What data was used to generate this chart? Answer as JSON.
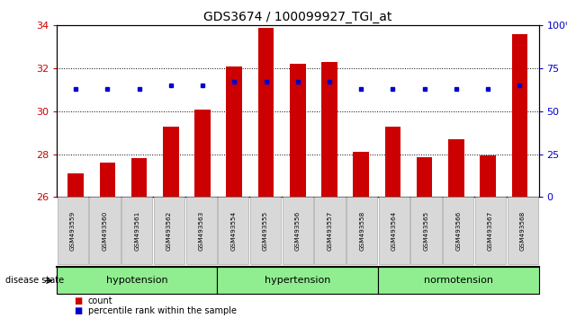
{
  "title": "GDS3674 / 100099927_TGI_at",
  "samples": [
    "GSM493559",
    "GSM493560",
    "GSM493561",
    "GSM493562",
    "GSM493563",
    "GSM493554",
    "GSM493555",
    "GSM493556",
    "GSM493557",
    "GSM493558",
    "GSM493564",
    "GSM493565",
    "GSM493566",
    "GSM493567",
    "GSM493568"
  ],
  "counts": [
    27.1,
    27.6,
    27.8,
    29.3,
    30.1,
    32.1,
    33.9,
    32.2,
    32.3,
    28.1,
    29.3,
    27.85,
    28.7,
    27.95,
    33.6
  ],
  "percentiles": [
    63,
    63,
    63,
    65,
    65,
    67,
    67,
    67,
    67,
    63,
    63,
    63,
    63,
    63,
    65
  ],
  "ylim_left": [
    26,
    34
  ],
  "ylim_right": [
    0,
    100
  ],
  "yticks_left": [
    26,
    28,
    30,
    32,
    34
  ],
  "yticks_right": [
    0,
    25,
    50,
    75,
    100
  ],
  "bar_color": "#cc0000",
  "dot_color": "#0000cc",
  "groups": [
    {
      "label": "hypotension",
      "start": 0,
      "end": 5
    },
    {
      "label": "hypertension",
      "start": 5,
      "end": 10
    },
    {
      "label": "normotension",
      "start": 10,
      "end": 15
    }
  ],
  "group_bg_color": "#90ee90",
  "xlabel_color": "#cc0000",
  "ylabel_right_color": "#0000cc",
  "bar_width": 0.5,
  "tick_label_bg": "#d8d8d8",
  "disease_state_label": "disease state"
}
